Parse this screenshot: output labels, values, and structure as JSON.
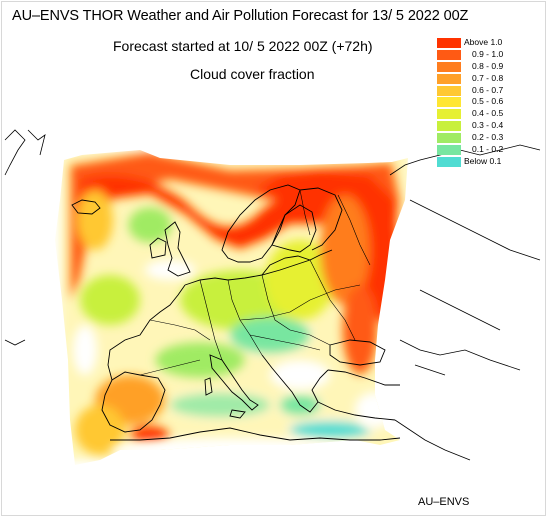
{
  "header": {
    "title": "AU–ENVS THOR Weather and Air Pollution Forecast for 13/ 5 2022  00Z",
    "subtitle": "Forecast started at 10/ 5 2022  00Z (+72h)",
    "field": "Cloud cover fraction"
  },
  "legend": {
    "items": [
      {
        "label": "Above   1.0",
        "color": "#ff3300"
      },
      {
        "label": "0.9  -  1.0",
        "color": "#ff5a14"
      },
      {
        "label": "0.8  -  0.9",
        "color": "#ff7d1e"
      },
      {
        "label": "0.7  -  0.8",
        "color": "#ffa028"
      },
      {
        "label": "0.6  -  0.7",
        "color": "#ffc832"
      },
      {
        "label": "0.5  -  0.6",
        "color": "#ffe632"
      },
      {
        "label": "0.4  -  0.5",
        "color": "#e6f032"
      },
      {
        "label": "0.3  -  0.4",
        "color": "#c8f03c"
      },
      {
        "label": "0.2  -  0.3",
        "color": "#a0eb64"
      },
      {
        "label": "0.1  -  0.2",
        "color": "#78e6a0"
      },
      {
        "label": "Below   0.1",
        "color": "#50dcd2"
      }
    ]
  },
  "credit": "AU–ENVS"
}
